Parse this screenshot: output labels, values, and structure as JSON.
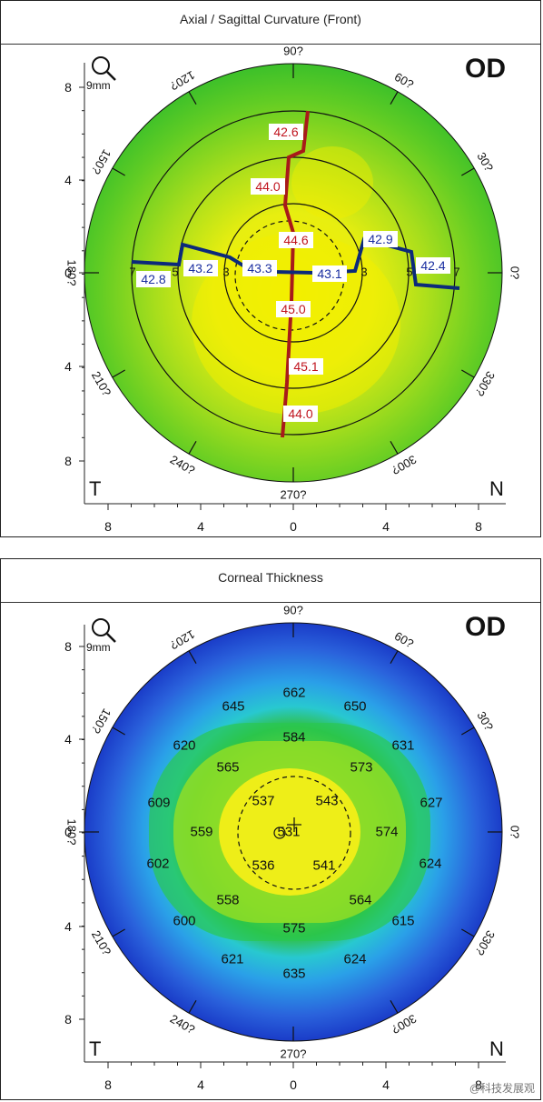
{
  "curvature": {
    "title": "Axial / Sagittal Curvature (Front)",
    "eye": "OD",
    "scale_label": "9mm",
    "colors": {
      "outer": "#3cc02a",
      "mid": "#8fdc1e",
      "inner": "#d8ec14",
      "core": "#f4f200",
      "meridian_steep": "#a81a1a",
      "meridian_flat": "#0c2a7a"
    },
    "angle_labels": [
      "90?",
      "60?",
      "30?",
      "0?",
      "330?",
      "300?",
      "270?",
      "240?",
      "210?",
      "180?",
      "150?",
      "120?"
    ],
    "side_left": "T",
    "side_right": "N",
    "y_ticks": [
      "8",
      "4",
      "0",
      "4",
      "8"
    ],
    "x_ticks": [
      "8",
      "4",
      "0",
      "4",
      "8"
    ],
    "ring_labels": [
      "7",
      "5",
      "3",
      "3",
      "5",
      "7"
    ],
    "values_steep": [
      "42.6",
      "44.0",
      "44.6",
      "45.0",
      "45.1",
      "44.0"
    ],
    "values_flat": [
      "42.8",
      "43.2",
      "43.3",
      "43.1",
      "42.9",
      "42.4"
    ]
  },
  "thickness": {
    "title": "Corneal Thickness",
    "eye": "OD",
    "scale_label": "9mm",
    "colors": {
      "edge": "#1a3cc8",
      "blue": "#2a80e8",
      "cyan": "#28c8d8",
      "green": "#30c040",
      "lime": "#a8e020",
      "yellow": "#ecec18"
    },
    "angle_labels": [
      "90?",
      "60?",
      "30?",
      "0?",
      "330?",
      "300?",
      "270?",
      "240?",
      "210?",
      "180?",
      "150?",
      "120?"
    ],
    "side_left": "T",
    "side_right": "N",
    "y_ticks": [
      "8",
      "4",
      "0",
      "4",
      "8"
    ],
    "x_ticks": [
      "8",
      "4",
      "0",
      "4",
      "8"
    ],
    "values": [
      "662",
      "645",
      "650",
      "620",
      "584",
      "631",
      "565",
      "573",
      "609",
      "537",
      "543",
      "627",
      "559",
      "531",
      "574",
      "602",
      "536",
      "541",
      "624",
      "558",
      "564",
      "600",
      "575",
      "615",
      "621",
      "624",
      "635"
    ]
  },
  "watermark": "@科技发展观"
}
